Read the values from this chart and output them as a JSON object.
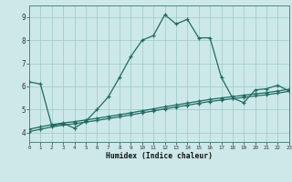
{
  "xlabel": "Humidex (Indice chaleur)",
  "background_color": "#cde8e8",
  "grid_color": "#9cc8c8",
  "line_color": "#1e6b60",
  "xlim": [
    0,
    23
  ],
  "ylim": [
    3.6,
    9.5
  ],
  "xticks": [
    0,
    1,
    2,
    3,
    4,
    5,
    6,
    7,
    8,
    9,
    10,
    11,
    12,
    13,
    14,
    15,
    16,
    17,
    18,
    19,
    20,
    21,
    22,
    23
  ],
  "yticks": [
    4,
    5,
    6,
    7,
    8,
    9
  ],
  "curve1_x": [
    0,
    1,
    2,
    3,
    4,
    5,
    6,
    7,
    8,
    9,
    10,
    11,
    12,
    13,
    14,
    15,
    16,
    17,
    18,
    19,
    20,
    21,
    22,
    23
  ],
  "curve1_y": [
    6.2,
    6.1,
    4.3,
    4.4,
    4.2,
    4.5,
    5.0,
    5.55,
    6.4,
    7.3,
    8.0,
    8.2,
    9.1,
    8.7,
    8.9,
    8.1,
    8.1,
    6.4,
    5.5,
    5.3,
    5.85,
    5.9,
    6.05,
    5.8
  ],
  "curve2_x": [
    0,
    1,
    2,
    3,
    4,
    5,
    6,
    7,
    8,
    9,
    10,
    11,
    12,
    13,
    14,
    15,
    16,
    17,
    18,
    19,
    20,
    21,
    22,
    23
  ],
  "curve2_y": [
    4.15,
    4.25,
    4.35,
    4.42,
    4.48,
    4.55,
    4.62,
    4.7,
    4.78,
    4.86,
    4.95,
    5.03,
    5.12,
    5.2,
    5.28,
    5.36,
    5.44,
    5.5,
    5.56,
    5.62,
    5.68,
    5.73,
    5.8,
    5.88
  ],
  "curve3_x": [
    0,
    1,
    2,
    3,
    4,
    5,
    6,
    7,
    8,
    9,
    10,
    11,
    12,
    13,
    14,
    15,
    16,
    17,
    18,
    19,
    20,
    21,
    22,
    23
  ],
  "curve3_y": [
    4.05,
    4.15,
    4.25,
    4.33,
    4.39,
    4.46,
    4.53,
    4.61,
    4.69,
    4.77,
    4.86,
    4.94,
    5.03,
    5.11,
    5.19,
    5.27,
    5.35,
    5.41,
    5.47,
    5.53,
    5.59,
    5.64,
    5.71,
    5.79
  ]
}
